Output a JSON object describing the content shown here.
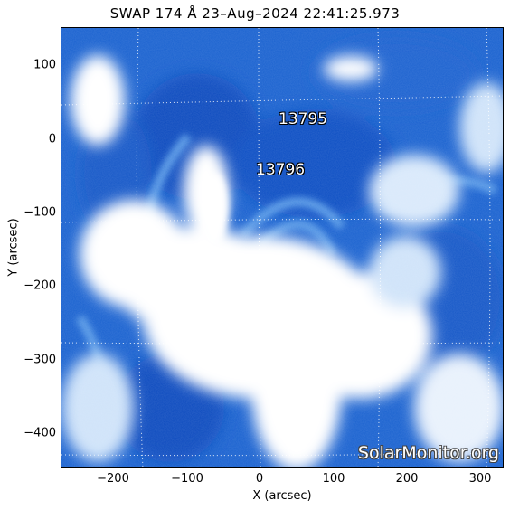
{
  "title": "SWAP 174 Å 23–Aug–2024 22:41:25.973",
  "xlabel": "X (arcsec)",
  "ylabel": "Y (arcsec)",
  "x_ticks": [
    "−200",
    "−100",
    "0",
    "100",
    "200",
    "300"
  ],
  "y_ticks": [
    "100",
    "0",
    "−100",
    "−200",
    "−300",
    "−400"
  ],
  "active_regions": [
    "13795",
    "13796"
  ],
  "watermark": "SolarMonitor.org",
  "colors": {
    "deep_blue": "#0a4fc2",
    "mid_blue": "#2f7fe0",
    "light_blue": "#bcd8f7",
    "white": "#ffffff"
  }
}
